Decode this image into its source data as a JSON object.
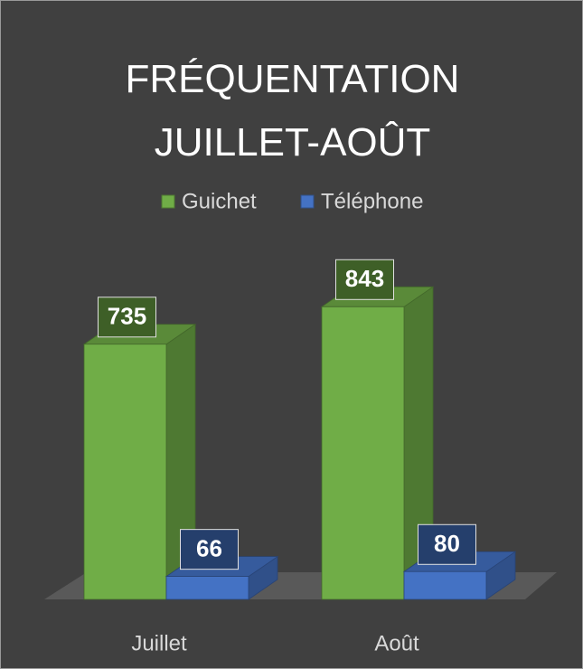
{
  "chart_data": {
    "type": "bar3d",
    "title": "FRÉQUENTATION JUILLET-AOÛT",
    "categories": [
      "Juillet",
      "Août"
    ],
    "series": [
      {
        "name": "Guichet",
        "color": "#70ad47",
        "values": [
          735,
          843
        ]
      },
      {
        "name": "Téléphone",
        "color": "#4472c4",
        "values": [
          66,
          80
        ]
      }
    ],
    "legend": "top"
  }
}
